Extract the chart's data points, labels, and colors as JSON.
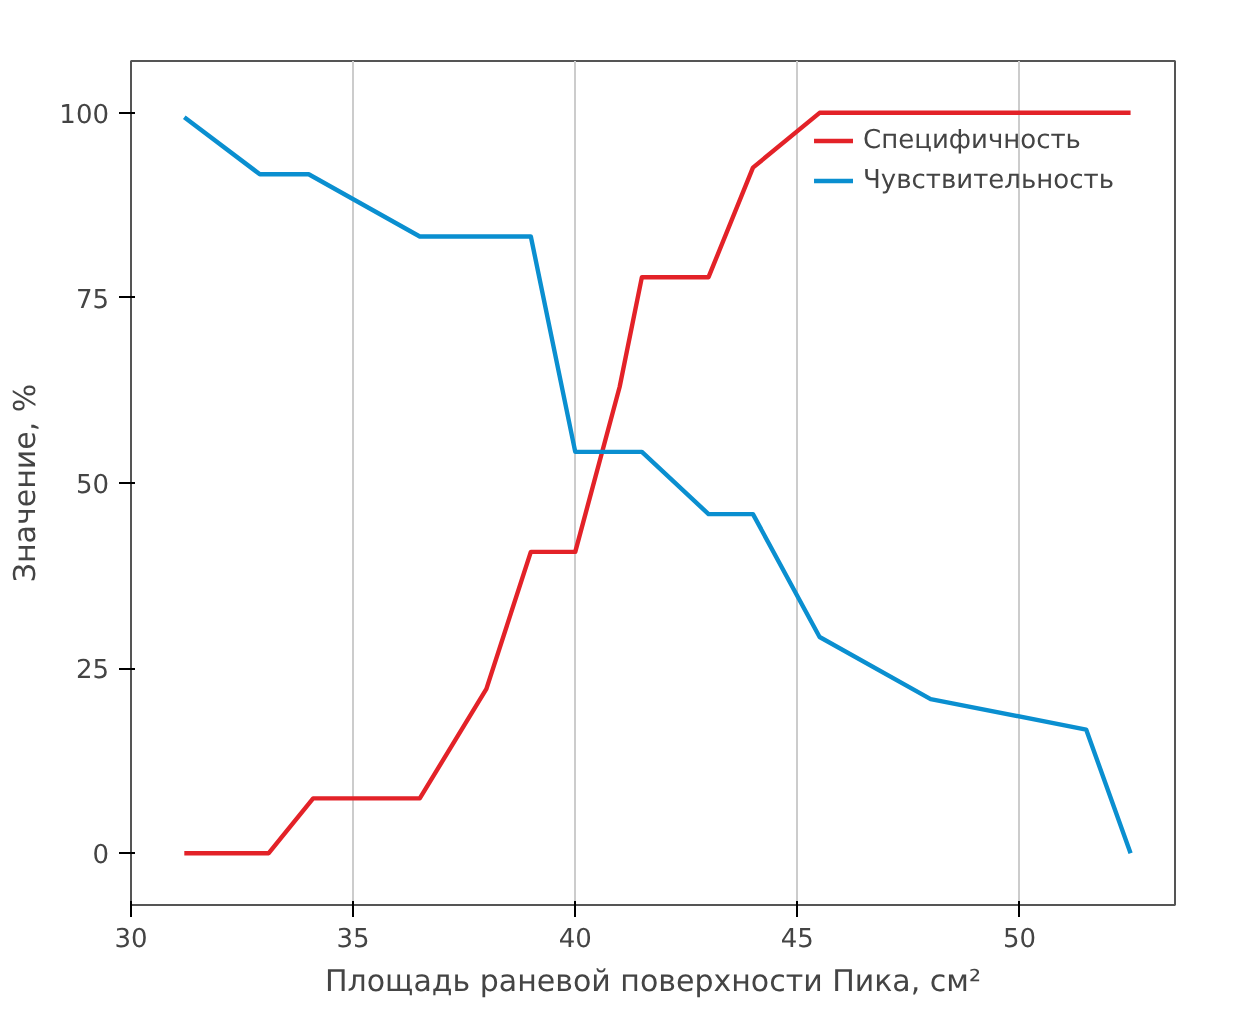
{
  "chart_data": {
    "type": "line",
    "xlabel": "Площадь раневой поверхности Пика, см²",
    "ylabel": "Значение, %",
    "xlim": [
      30,
      53.5
    ],
    "xticks": [
      30,
      35,
      40,
      45,
      50
    ],
    "ylim": [
      -7,
      107
    ],
    "yticks": [
      0,
      25,
      50,
      75,
      100
    ],
    "grid": "x",
    "legend": "top right",
    "line_style": "solid",
    "marker": "none",
    "series": [
      {
        "name": "Специфичность",
        "color": "#e32228",
        "x": [
          31.2,
          33.1,
          34.1,
          36.5,
          38,
          39,
          40,
          41,
          41.5,
          43,
          44,
          45.5,
          52.5
        ],
        "values": [
          0,
          0,
          7.4,
          7.4,
          22.2,
          40.7,
          40.7,
          63,
          77.8,
          77.8,
          92.6,
          100,
          100
        ]
      },
      {
        "name": "Чувствительность",
        "color": "#0a8fd0",
        "x": [
          31.2,
          32.9,
          34,
          36.5,
          39,
          40,
          41.5,
          43,
          44,
          45.5,
          48,
          51.5,
          52.5
        ],
        "values": [
          99.4,
          91.7,
          91.7,
          83.3,
          83.3,
          54.2,
          54.2,
          45.8,
          45.8,
          29.2,
          20.8,
          16.7,
          0
        ]
      }
    ]
  }
}
